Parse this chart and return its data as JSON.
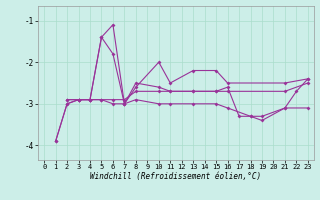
{
  "xlabel": "Windchill (Refroidissement éolien,°C)",
  "background_color": "#cceee8",
  "line_color": "#993399",
  "grid_color": "#aaddcc",
  "xlim": [
    -0.5,
    23.5
  ],
  "ylim": [
    -4.35,
    -0.65
  ],
  "yticks": [
    -4,
    -3,
    -2,
    -1
  ],
  "xticks": [
    0,
    1,
    2,
    3,
    4,
    5,
    6,
    7,
    8,
    9,
    10,
    11,
    12,
    13,
    14,
    15,
    16,
    17,
    18,
    19,
    20,
    21,
    22,
    23
  ],
  "series_raw": {
    "line1_x": [
      1,
      2,
      3,
      4,
      5,
      6,
      7,
      8,
      10,
      11,
      13,
      15,
      16,
      21,
      23
    ],
    "line1_y": [
      -3.9,
      -3.0,
      -2.9,
      -2.9,
      -1.4,
      -1.1,
      -3.0,
      -2.6,
      -2.0,
      -2.5,
      -2.2,
      -2.2,
      -2.5,
      -2.5,
      -2.4
    ],
    "line2_x": [
      2,
      3,
      4,
      5,
      6,
      7,
      8,
      10,
      11,
      13,
      15,
      16,
      21,
      23
    ],
    "line2_y": [
      -2.9,
      -2.9,
      -2.9,
      -2.9,
      -2.9,
      -2.9,
      -2.7,
      -2.7,
      -2.7,
      -2.7,
      -2.7,
      -2.7,
      -2.7,
      -2.5
    ],
    "line3_x": [
      2,
      3,
      4,
      5,
      6,
      7,
      8,
      10,
      11,
      13,
      15,
      16,
      18,
      19,
      21,
      23
    ],
    "line3_y": [
      -2.9,
      -2.9,
      -2.9,
      -2.9,
      -3.0,
      -3.0,
      -2.9,
      -3.0,
      -3.0,
      -3.0,
      -3.0,
      -3.1,
      -3.3,
      -3.3,
      -3.1,
      -3.1
    ],
    "line4_x": [
      1,
      2,
      3,
      4,
      5,
      6,
      7,
      8,
      10,
      11,
      13,
      15,
      16,
      17,
      18,
      19,
      21,
      22,
      23
    ],
    "line4_y": [
      -3.9,
      -3.0,
      -2.9,
      -2.9,
      -1.4,
      -1.8,
      -3.0,
      -2.5,
      -2.6,
      -2.7,
      -2.7,
      -2.7,
      -2.6,
      -3.3,
      -3.3,
      -3.4,
      -3.1,
      -2.7,
      -2.4
    ]
  }
}
